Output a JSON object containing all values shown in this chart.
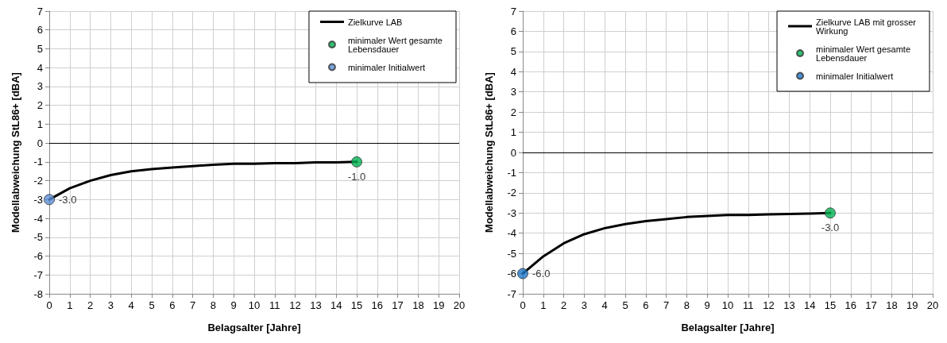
{
  "chart_data": [
    {
      "type": "line",
      "xlabel": "Belagsalter [Jahre]",
      "ylabel": "Modellabweichung StL86+ [dBA]",
      "xlim": [
        0,
        20
      ],
      "xticks": [
        0,
        1,
        2,
        3,
        4,
        5,
        6,
        7,
        8,
        9,
        10,
        11,
        12,
        13,
        14,
        15,
        16,
        17,
        18,
        19,
        20
      ],
      "ylim": [
        -8,
        7
      ],
      "yticks": [
        -8,
        -7,
        -6,
        -5,
        -4,
        -3,
        -2,
        -1,
        0,
        1,
        2,
        3,
        4,
        5,
        6,
        7
      ],
      "grid": true,
      "legend": "top right",
      "ref_lines": [
        {
          "axis": "y",
          "value": 0,
          "color": "#000000"
        }
      ],
      "series": [
        {
          "name": "Zielkurve LAB",
          "color": "#000000",
          "marker": "none",
          "line_style": "solid",
          "x": [
            0,
            1,
            2,
            3,
            4,
            5,
            6,
            7,
            8,
            9,
            10,
            11,
            12,
            13,
            14,
            15
          ],
          "values": [
            -3.0,
            -2.4,
            -2.0,
            -1.7,
            -1.5,
            -1.38,
            -1.3,
            -1.23,
            -1.15,
            -1.1,
            -1.1,
            -1.07,
            -1.07,
            -1.03,
            -1.03,
            -1.0
          ]
        },
        {
          "type": "scatter",
          "name": "minimaler Wert gesamte Lebensdauer",
          "color": "#00b050",
          "marker": "circle",
          "x": [
            15
          ],
          "values": [
            -1.0
          ],
          "value_labels": [
            "-1.0"
          ]
        },
        {
          "type": "scatter",
          "name": "minimaler Initialwert",
          "color": "#5b8fd6",
          "marker": "circle",
          "x": [
            0
          ],
          "values": [
            -3.0
          ],
          "value_labels": [
            "-3.0"
          ]
        }
      ]
    },
    {
      "type": "line",
      "xlabel": "Belagsalter [Jahre]",
      "ylabel": "Modellabweichung StL86+ [dBA]",
      "xlim": [
        0,
        20
      ],
      "xticks": [
        0,
        1,
        2,
        3,
        4,
        5,
        6,
        7,
        8,
        9,
        10,
        11,
        12,
        13,
        14,
        15,
        16,
        17,
        18,
        19,
        20
      ],
      "ylim": [
        -7,
        7
      ],
      "yticks": [
        -7,
        -6,
        -5,
        -4,
        -3,
        -2,
        -1,
        0,
        1,
        2,
        3,
        4,
        5,
        6,
        7
      ],
      "grid": true,
      "legend": "top right",
      "ref_lines": [
        {
          "axis": "y",
          "value": 0,
          "color": "#000000"
        }
      ],
      "series": [
        {
          "name": "Zielkurve LAB mit grosser Wirkung",
          "color": "#000000",
          "marker": "none",
          "line_style": "solid",
          "x": [
            0,
            1,
            2,
            3,
            4,
            5,
            6,
            7,
            8,
            9,
            10,
            11,
            12,
            13,
            14,
            15
          ],
          "values": [
            -6.0,
            -5.15,
            -4.5,
            -4.05,
            -3.75,
            -3.55,
            -3.4,
            -3.3,
            -3.2,
            -3.15,
            -3.1,
            -3.1,
            -3.07,
            -3.05,
            -3.03,
            -3.0
          ]
        },
        {
          "type": "scatter",
          "name": "minimaler Wert gesamte Lebensdauer",
          "color": "#00b050",
          "marker": "circle",
          "x": [
            15
          ],
          "values": [
            -3.0
          ],
          "value_labels": [
            "-3.0"
          ]
        },
        {
          "type": "scatter",
          "name": "minimaler Initialwert",
          "color": "#1f77c8",
          "marker": "circle",
          "x": [
            0
          ],
          "values": [
            -6.0
          ],
          "value_labels": [
            "-6.0"
          ]
        }
      ]
    }
  ]
}
